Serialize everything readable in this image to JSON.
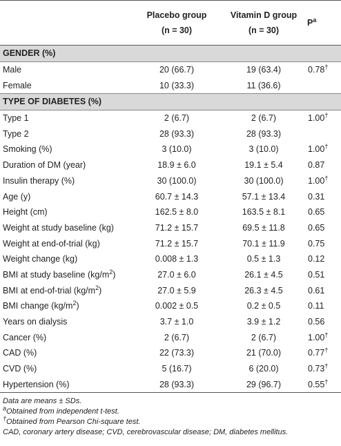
{
  "table": {
    "header": [
      null,
      {
        "line1": "Placebo group",
        "line2": "(n = 30)"
      },
      {
        "line1": "Vitamin D group",
        "line2": "(n = 30)"
      },
      {
        "text": "P",
        "sup": "a"
      }
    ],
    "rows": [
      {
        "section": "GENDER (%)"
      },
      [
        "Male",
        "20 (66.7)",
        "19 (63.4)",
        {
          "text": "0.78",
          "sup": "†"
        }
      ],
      [
        "Female",
        "10 (33.3)",
        "11 (36.6)",
        null
      ],
      {
        "section": "TYPE OF DIABETES (%)"
      },
      [
        "Type 1",
        "2 (6.7)",
        "2 (6.7)",
        {
          "text": "1.00",
          "sup": "†"
        }
      ],
      [
        "Type 2",
        "28 (93.3)",
        "28 (93.3)",
        null
      ],
      [
        "Smoking (%)",
        "3 (10.0)",
        "3 (10.0)",
        {
          "text": "1.00",
          "sup": "†"
        }
      ],
      [
        "Duration of DM (year)",
        "18.9 ± 6.0",
        "19.1 ± 5.4",
        "0.87"
      ],
      [
        "Insulin therapy (%)",
        "30 (100.0)",
        "30 (100.0)",
        {
          "text": "1.00",
          "sup": "†"
        }
      ],
      [
        "Age (y)",
        "60.7 ± 14.3",
        "57.1 ± 13.4",
        "0.31"
      ],
      [
        "Height (cm)",
        "162.5 ± 8.0",
        "163.5 ± 8.1",
        "0.65"
      ],
      [
        "Weight at study baseline (kg)",
        "71.2 ± 15.7",
        "69.5 ± 11.8",
        "0.65"
      ],
      [
        "Weight at end-of-trial (kg)",
        "71.2 ± 15.7",
        "70.1 ± 11.9",
        "0.75"
      ],
      [
        "Weight change (kg)",
        "0.008 ± 1.3",
        "0.5 ± 1.3",
        "0.12"
      ],
      [
        {
          "text": "BMI at study baseline (kg/m",
          "sup": "2",
          "after": ")"
        },
        "27.0 ± 6.0",
        "26.1 ± 4.5",
        "0.51"
      ],
      [
        {
          "text": "BMI at end-of-trial (kg/m",
          "sup": "2",
          "after": ")"
        },
        "27.0 ± 5.9",
        "26.3 ± 4.5",
        "0.61"
      ],
      [
        {
          "text": "BMI change (kg/m",
          "sup": "2",
          "after": ")"
        },
        "0.002 ± 0.5",
        "0.2 ± 0.5",
        "0.11"
      ],
      [
        "Years on dialysis",
        "3.7 ± 1.0",
        "3.9 ± 1.2",
        "0.56"
      ],
      [
        "Cancer (%)",
        "2 (6.7)",
        "2 (6.7)",
        {
          "text": "1.00",
          "sup": "†"
        }
      ],
      [
        "CAD (%)",
        "22 (73.3)",
        "21 (70.0)",
        {
          "text": "0.77",
          "sup": "†"
        }
      ],
      [
        "CVD (%)",
        "5 (16.7)",
        "6 (20.0)",
        {
          "text": "0.73",
          "sup": "†"
        }
      ],
      [
        "Hypertension (%)",
        "28 (93.3)",
        "29 (96.7)",
        {
          "text": "0.55",
          "sup": "†"
        }
      ]
    ]
  },
  "footnotes": [
    {
      "text": "Data are means ± SDs."
    },
    {
      "sup": "a",
      "text": "Obtained from independent t-test."
    },
    {
      "sup": "†",
      "text": "Obtained from Pearson Chi-square test."
    },
    {
      "text": "CAD, coronary artery disease; CVD, cerebrovascular disease; DM, diabetes mellitus."
    }
  ]
}
